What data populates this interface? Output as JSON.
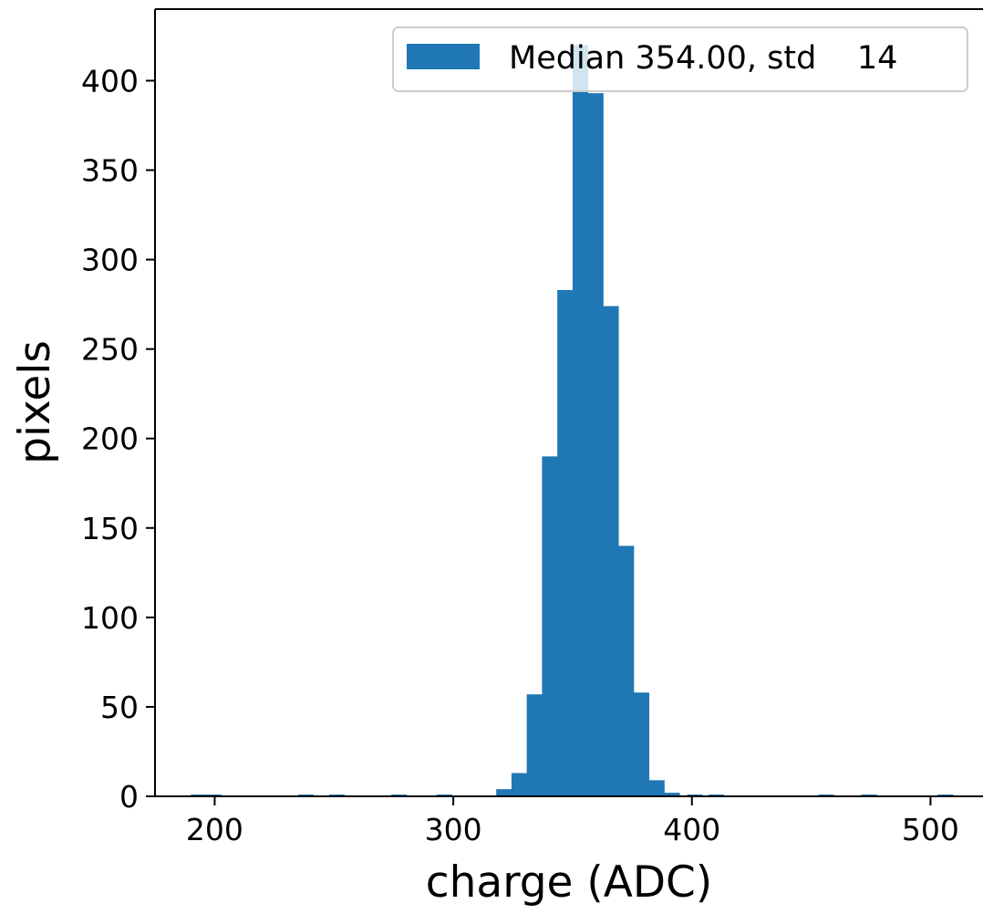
{
  "chart_data": {
    "type": "bar",
    "title": "",
    "xlabel": "charge (ADC)",
    "ylabel": "pixels",
    "xlim": [
      175,
      522
    ],
    "ylim": [
      0,
      440
    ],
    "xticks": [
      200,
      300,
      400,
      500
    ],
    "yticks": [
      0,
      50,
      100,
      150,
      200,
      250,
      300,
      350,
      400
    ],
    "bin_width": 6.4,
    "bins": [
      {
        "x0": 190.0,
        "value": 1
      },
      {
        "x0": 196.4,
        "value": 1
      },
      {
        "x0": 235.0,
        "value": 1
      },
      {
        "x0": 248.0,
        "value": 1
      },
      {
        "x0": 274.0,
        "value": 1
      },
      {
        "x0": 293.0,
        "value": 1
      },
      {
        "x0": 318.0,
        "value": 4
      },
      {
        "x0": 324.4,
        "value": 13
      },
      {
        "x0": 330.8,
        "value": 57
      },
      {
        "x0": 337.2,
        "value": 190
      },
      {
        "x0": 343.6,
        "value": 283
      },
      {
        "x0": 350.0,
        "value": 420
      },
      {
        "x0": 356.4,
        "value": 393
      },
      {
        "x0": 362.8,
        "value": 274
      },
      {
        "x0": 369.2,
        "value": 140
      },
      {
        "x0": 375.6,
        "value": 58
      },
      {
        "x0": 382.0,
        "value": 9
      },
      {
        "x0": 388.4,
        "value": 2
      },
      {
        "x0": 398.0,
        "value": 1
      },
      {
        "x0": 407.0,
        "value": 1
      },
      {
        "x0": 453.0,
        "value": 1
      },
      {
        "x0": 471.0,
        "value": 1
      },
      {
        "x0": 503.0,
        "value": 1
      }
    ],
    "series": [
      {
        "name": "Median 354.00, std    14",
        "color": "#1f77b4"
      }
    ],
    "legend": {
      "placement": "top-right",
      "label": "Median 354.00, std    14"
    },
    "grid": false
  }
}
